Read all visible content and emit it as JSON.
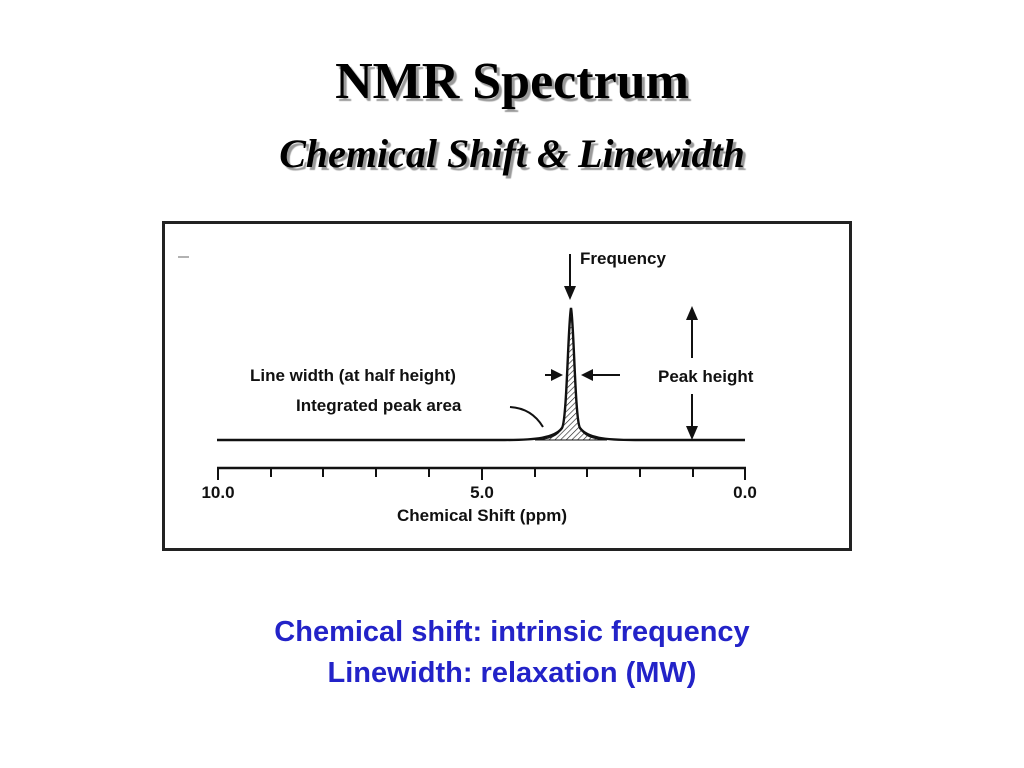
{
  "slide": {
    "title": "NMR Spectrum",
    "subtitle": "Chemical Shift & Linewidth",
    "captions": [
      "Chemical shift: intrinsic frequency",
      "Linewidth: relaxation (MW)"
    ]
  },
  "figure": {
    "labels": {
      "frequency": "Frequency",
      "line_width": "Line width (at half height)",
      "integrated_area": "Integrated peak area",
      "peak_height": "Peak height"
    },
    "axis": {
      "title": "Chemical Shift (ppm)",
      "tick_labels": [
        "10.0",
        "5.0",
        "0.0"
      ]
    },
    "colors": {
      "ink": "#111111",
      "caption_blue": "#2323c8"
    }
  }
}
